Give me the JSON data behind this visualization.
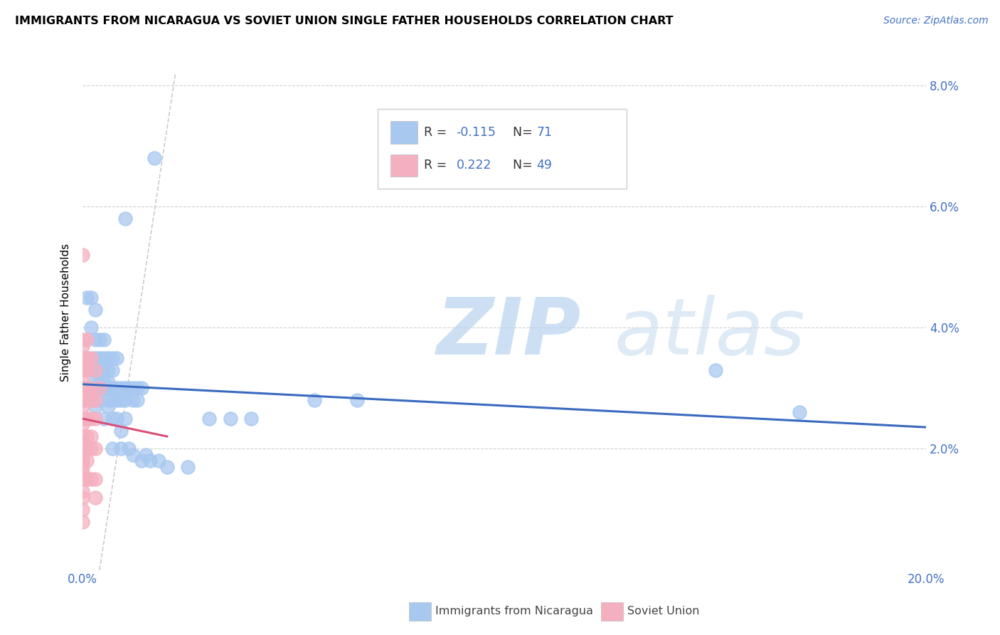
{
  "title": "IMMIGRANTS FROM NICARAGUA VS SOVIET UNION SINGLE FATHER HOUSEHOLDS CORRELATION CHART",
  "source": "Source: ZipAtlas.com",
  "ylabel": "Single Father Households",
  "xlim": [
    0.0,
    0.2
  ],
  "ylim": [
    0.0,
    0.085
  ],
  "xticks": [
    0.0,
    0.04,
    0.08,
    0.12,
    0.16,
    0.2
  ],
  "xticklabels": [
    "0.0%",
    "",
    "",
    "",
    "",
    "20.0%"
  ],
  "yticks_right": [
    0.0,
    0.02,
    0.04,
    0.06,
    0.08
  ],
  "yticklabels_right": [
    "",
    "2.0%",
    "4.0%",
    "6.0%",
    "8.0%"
  ],
  "nicaragua_color": "#a8c8f0",
  "soviet_color": "#f5b0c0",
  "nicaragua_line_color": "#3a6abf",
  "soviet_line_color": "#d94f78",
  "r_nicaragua": -0.115,
  "n_nicaragua": 71,
  "r_soviet": 0.222,
  "n_soviet": 49,
  "watermark_zip": "ZIP",
  "watermark_atlas": "atlas",
  "nicaragua_points": [
    [
      0.001,
      0.045
    ],
    [
      0.002,
      0.045
    ],
    [
      0.003,
      0.043
    ],
    [
      0.002,
      0.04
    ],
    [
      0.003,
      0.038
    ],
    [
      0.004,
      0.038
    ],
    [
      0.005,
      0.038
    ],
    [
      0.003,
      0.035
    ],
    [
      0.004,
      0.035
    ],
    [
      0.005,
      0.035
    ],
    [
      0.006,
      0.035
    ],
    [
      0.007,
      0.035
    ],
    [
      0.008,
      0.035
    ],
    [
      0.002,
      0.033
    ],
    [
      0.003,
      0.033
    ],
    [
      0.004,
      0.033
    ],
    [
      0.005,
      0.033
    ],
    [
      0.006,
      0.033
    ],
    [
      0.007,
      0.033
    ],
    [
      0.003,
      0.031
    ],
    [
      0.004,
      0.031
    ],
    [
      0.005,
      0.031
    ],
    [
      0.006,
      0.031
    ],
    [
      0.002,
      0.03
    ],
    [
      0.003,
      0.03
    ],
    [
      0.004,
      0.03
    ],
    [
      0.005,
      0.03
    ],
    [
      0.006,
      0.03
    ],
    [
      0.007,
      0.03
    ],
    [
      0.008,
      0.03
    ],
    [
      0.009,
      0.03
    ],
    [
      0.01,
      0.03
    ],
    [
      0.011,
      0.03
    ],
    [
      0.012,
      0.03
    ],
    [
      0.013,
      0.03
    ],
    [
      0.014,
      0.03
    ],
    [
      0.002,
      0.028
    ],
    [
      0.004,
      0.028
    ],
    [
      0.006,
      0.028
    ],
    [
      0.007,
      0.028
    ],
    [
      0.008,
      0.028
    ],
    [
      0.009,
      0.028
    ],
    [
      0.01,
      0.028
    ],
    [
      0.012,
      0.028
    ],
    [
      0.013,
      0.028
    ],
    [
      0.003,
      0.027
    ],
    [
      0.006,
      0.027
    ],
    [
      0.005,
      0.025
    ],
    [
      0.007,
      0.025
    ],
    [
      0.008,
      0.025
    ],
    [
      0.01,
      0.025
    ],
    [
      0.009,
      0.023
    ],
    [
      0.007,
      0.02
    ],
    [
      0.009,
      0.02
    ],
    [
      0.011,
      0.02
    ],
    [
      0.012,
      0.019
    ],
    [
      0.015,
      0.019
    ],
    [
      0.014,
      0.018
    ],
    [
      0.016,
      0.018
    ],
    [
      0.018,
      0.018
    ],
    [
      0.02,
      0.017
    ],
    [
      0.025,
      0.017
    ],
    [
      0.03,
      0.025
    ],
    [
      0.035,
      0.025
    ],
    [
      0.04,
      0.025
    ],
    [
      0.055,
      0.028
    ],
    [
      0.065,
      0.028
    ],
    [
      0.01,
      0.058
    ],
    [
      0.017,
      0.068
    ],
    [
      0.15,
      0.033
    ],
    [
      0.17,
      0.026
    ]
  ],
  "soviet_points": [
    [
      0.0,
      0.052
    ],
    [
      0.0,
      0.038
    ],
    [
      0.0,
      0.037
    ],
    [
      0.0,
      0.035
    ],
    [
      0.0,
      0.034
    ],
    [
      0.0,
      0.033
    ],
    [
      0.0,
      0.032
    ],
    [
      0.0,
      0.03
    ],
    [
      0.0,
      0.029
    ],
    [
      0.0,
      0.028
    ],
    [
      0.0,
      0.027
    ],
    [
      0.0,
      0.025
    ],
    [
      0.0,
      0.024
    ],
    [
      0.0,
      0.022
    ],
    [
      0.0,
      0.021
    ],
    [
      0.0,
      0.02
    ],
    [
      0.0,
      0.019
    ],
    [
      0.0,
      0.018
    ],
    [
      0.0,
      0.017
    ],
    [
      0.0,
      0.016
    ],
    [
      0.0,
      0.015
    ],
    [
      0.0,
      0.013
    ],
    [
      0.0,
      0.012
    ],
    [
      0.0,
      0.01
    ],
    [
      0.0,
      0.008
    ],
    [
      0.001,
      0.038
    ],
    [
      0.001,
      0.035
    ],
    [
      0.001,
      0.033
    ],
    [
      0.001,
      0.03
    ],
    [
      0.001,
      0.028
    ],
    [
      0.001,
      0.025
    ],
    [
      0.001,
      0.022
    ],
    [
      0.001,
      0.02
    ],
    [
      0.001,
      0.018
    ],
    [
      0.001,
      0.015
    ],
    [
      0.002,
      0.035
    ],
    [
      0.002,
      0.03
    ],
    [
      0.002,
      0.028
    ],
    [
      0.002,
      0.025
    ],
    [
      0.002,
      0.022
    ],
    [
      0.002,
      0.02
    ],
    [
      0.002,
      0.015
    ],
    [
      0.003,
      0.033
    ],
    [
      0.003,
      0.028
    ],
    [
      0.003,
      0.025
    ],
    [
      0.003,
      0.02
    ],
    [
      0.003,
      0.015
    ],
    [
      0.003,
      0.012
    ],
    [
      0.004,
      0.03
    ]
  ],
  "diag_line": [
    [
      0.0,
      0.0
    ],
    [
      0.085,
      0.085
    ]
  ]
}
